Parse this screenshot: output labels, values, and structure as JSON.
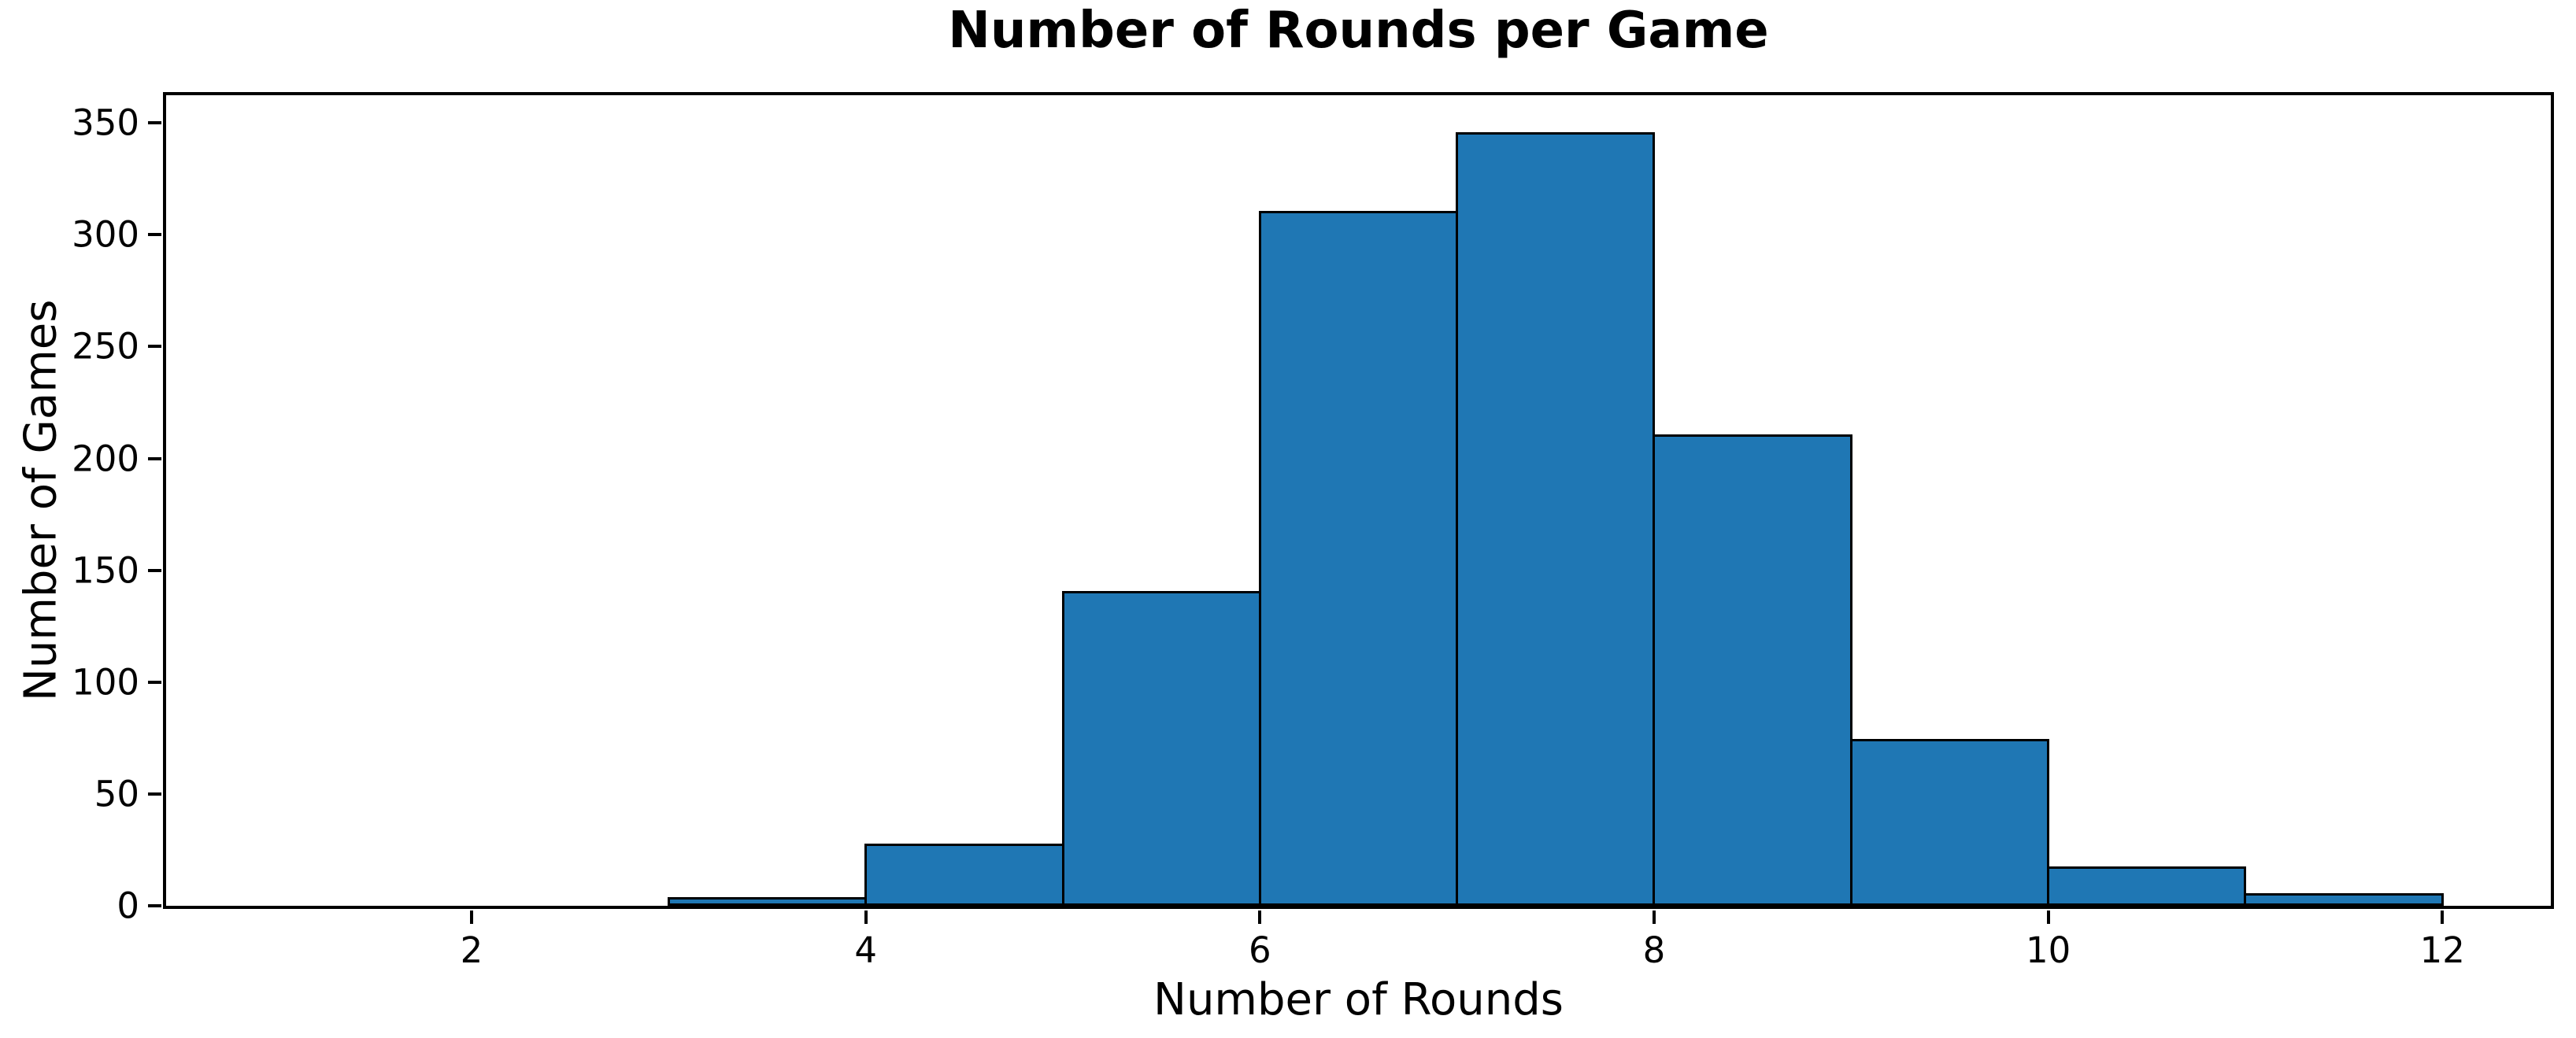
{
  "chart_data": {
    "type": "bar",
    "subtype": "histogram",
    "title": "Number of Rounds per Game",
    "xlabel": "Number of Rounds",
    "ylabel": "Number of Games",
    "bin_edges": [
      1,
      2,
      3,
      4,
      5,
      6,
      7,
      8,
      9,
      10,
      11,
      12
    ],
    "counts": [
      0,
      0,
      3,
      27,
      140,
      310,
      345,
      210,
      74,
      17,
      5
    ],
    "xticks": [
      2,
      4,
      6,
      8,
      10,
      12
    ],
    "yticks": [
      0,
      50,
      100,
      150,
      200,
      250,
      300,
      350
    ],
    "xlim": [
      0.45,
      12.55
    ],
    "ylim": [
      0,
      362.4
    ],
    "bar_color": "#1f77b4",
    "edge_color": "#000000",
    "background_color": "#ffffff",
    "grid": false,
    "legend_position": "none"
  }
}
